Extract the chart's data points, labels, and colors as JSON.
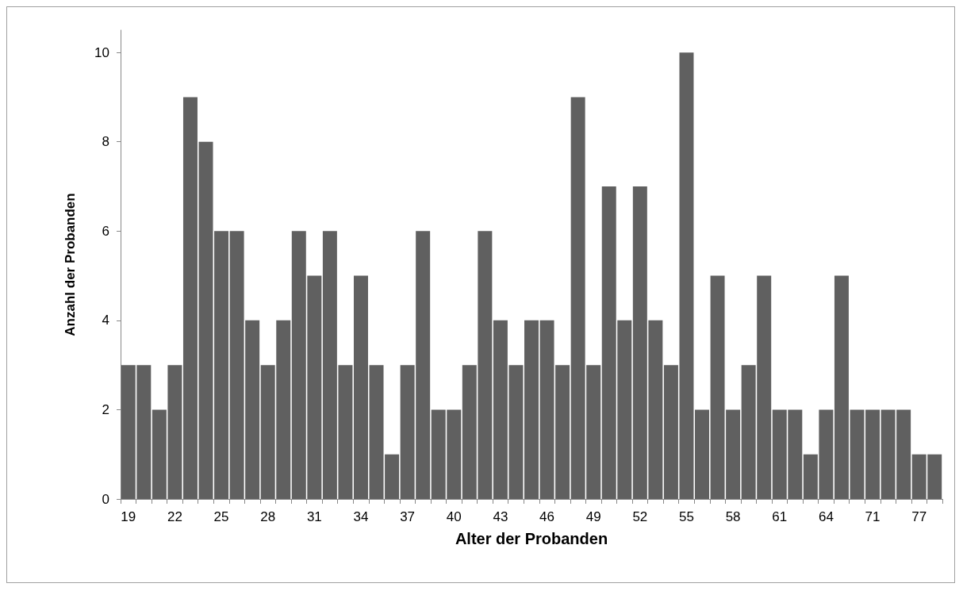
{
  "chart_data": {
    "type": "bar",
    "xlabel": "Alter der Probanden",
    "ylabel": "Anzahl der Probanden",
    "categories": [
      "19",
      null,
      null,
      "22",
      null,
      null,
      "25",
      null,
      null,
      "28",
      null,
      null,
      "31",
      null,
      null,
      "34",
      null,
      null,
      "37",
      null,
      null,
      "40",
      null,
      null,
      "43",
      null,
      null,
      "46",
      null,
      null,
      "49",
      null,
      null,
      "52",
      null,
      null,
      "55",
      null,
      null,
      "58",
      null,
      null,
      "61",
      null,
      null,
      "64",
      null,
      null,
      "71",
      null,
      null,
      "77",
      null
    ],
    "values": [
      3,
      3,
      2,
      3,
      9,
      8,
      6,
      6,
      4,
      3,
      4,
      6,
      5,
      6,
      3,
      5,
      3,
      1,
      3,
      6,
      2,
      2,
      3,
      6,
      4,
      3,
      4,
      4,
      3,
      9,
      3,
      7,
      4,
      7,
      4,
      3,
      10,
      2,
      5,
      2,
      3,
      5,
      2,
      2,
      1,
      2,
      5,
      2,
      2,
      2,
      2,
      1,
      1
    ],
    "color": "#606060",
    "ylim": [
      0,
      10.5
    ],
    "yticks": [
      0,
      2,
      4,
      6,
      8,
      10
    ],
    "grid": false
  }
}
